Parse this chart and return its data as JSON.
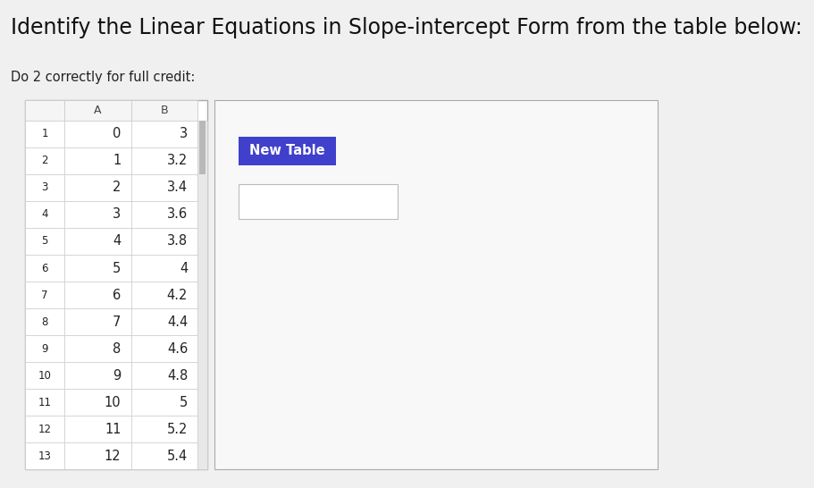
{
  "title": "Identify the Linear Equations in Slope-intercept Form from the table below:",
  "subtitle": "Do 2 correctly for full credit:",
  "title_fontsize": 17,
  "subtitle_fontsize": 10.5,
  "background_color": "#f0f0f0",
  "table_header": [
    "",
    "A",
    "B"
  ],
  "table_rows": [
    [
      "1",
      "0",
      "3"
    ],
    [
      "2",
      "1",
      "3.2"
    ],
    [
      "3",
      "2",
      "3.4"
    ],
    [
      "4",
      "3",
      "3.6"
    ],
    [
      "5",
      "4",
      "3.8"
    ],
    [
      "6",
      "5",
      "4"
    ],
    [
      "7",
      "6",
      "4.2"
    ],
    [
      "8",
      "7",
      "4.4"
    ],
    [
      "9",
      "8",
      "4.6"
    ],
    [
      "10",
      "9",
      "4.8"
    ],
    [
      "11",
      "10",
      "5"
    ],
    [
      "12",
      "11",
      "5.2"
    ],
    [
      "13",
      "12",
      "5.4"
    ]
  ],
  "new_table_button_color": "#4040cc",
  "new_table_button_text": "New Table",
  "new_table_button_text_color": "#ffffff",
  "scrollbar_color": "#b0b0b0",
  "table_border_color": "#aaaaaa",
  "cell_line_color": "#cccccc",
  "right_panel_bg": "#f8f8f8",
  "right_panel_border": "#aaaaaa",
  "input_box_color": "#ffffff",
  "input_box_border": "#bbbbbb"
}
